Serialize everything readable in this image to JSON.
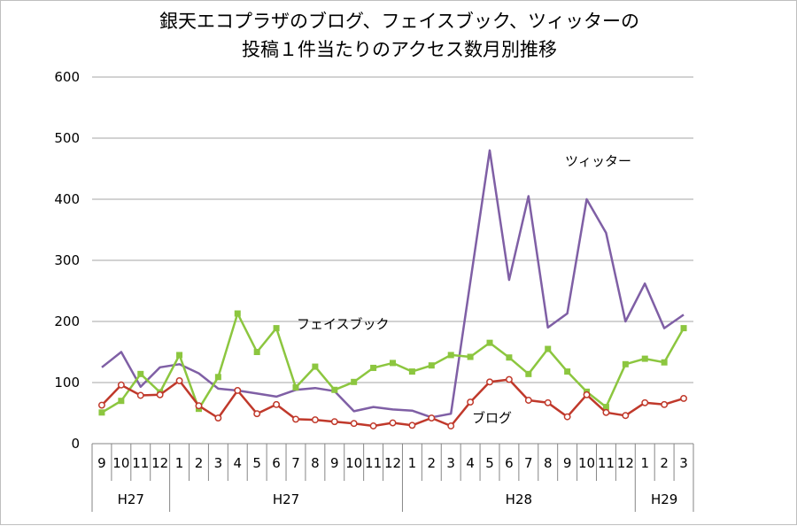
{
  "chart_data": {
    "type": "line",
    "title_lines": [
      "銀天エコプラザのブログ、フェイスブック、ツィッターの",
      "投稿１件当たりのアクセス数月別推移"
    ],
    "y_ticks": [
      "0",
      "100",
      "200",
      "300",
      "400",
      "500",
      "600"
    ],
    "ylim": [
      0,
      600
    ],
    "grid": true,
    "categories": [
      "9",
      "10",
      "11",
      "12",
      "1",
      "2",
      "3",
      "4",
      "5",
      "6",
      "7",
      "8",
      "9",
      "10",
      "11",
      "12",
      "1",
      "2",
      "3",
      "4",
      "5",
      "6",
      "7",
      "8",
      "9",
      "10",
      "11",
      "12",
      "1",
      "2",
      "3"
    ],
    "groups": [
      {
        "label": "H27",
        "start": 0,
        "count": 4
      },
      {
        "label": "H27",
        "start": 4,
        "count": 12
      },
      {
        "label": "H28",
        "start": 16,
        "count": 12
      },
      {
        "label": "H29",
        "start": 28,
        "count": 3
      }
    ],
    "series": [
      {
        "key": "twitter",
        "color": "#7f5fa5",
        "marker": "none",
        "values": [
          125,
          150,
          93,
          125,
          130,
          115,
          90,
          87,
          82,
          77,
          88,
          91,
          86,
          53,
          60,
          56,
          54,
          43,
          49,
          null,
          480,
          268,
          405,
          190,
          213,
          400,
          345,
          200,
          262,
          189,
          211
        ]
      },
      {
        "key": "facebook",
        "color": "#8cc63f",
        "marker": "square",
        "values": [
          51,
          70,
          114,
          84,
          145,
          57,
          109,
          213,
          150,
          189,
          92,
          126,
          88,
          101,
          124,
          132,
          118,
          128,
          145,
          142,
          165,
          141,
          114,
          155,
          118,
          85,
          60,
          130,
          139,
          133,
          189
        ]
      },
      {
        "key": "blog",
        "color": "#c0392b",
        "marker": "circle",
        "values": [
          63,
          96,
          79,
          80,
          103,
          62,
          42,
          87,
          49,
          64,
          40,
          39,
          36,
          33,
          29,
          34,
          30,
          42,
          29,
          68,
          101,
          105,
          71,
          67,
          44,
          80,
          51,
          46,
          67,
          64,
          74
        ]
      }
    ],
    "annotations": [
      {
        "series": "twitter",
        "text": "ツィッター"
      },
      {
        "series": "facebook",
        "text": "フェイスブック"
      },
      {
        "series": "blog",
        "text": "ブログ"
      }
    ]
  }
}
